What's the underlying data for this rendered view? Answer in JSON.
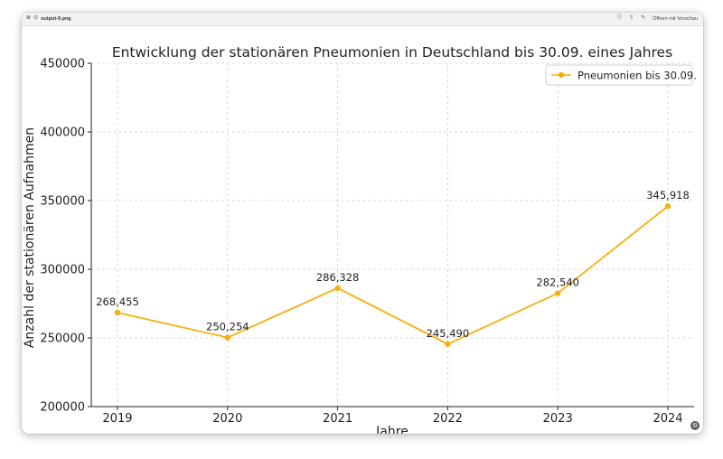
{
  "window": {
    "filename": "output-9.png",
    "open_with": "Öffnen mit Vorschau",
    "icons": [
      "close-icon",
      "zoom-icon",
      "info-icon",
      "share-icon",
      "markup-icon"
    ]
  },
  "chart_data": {
    "type": "line",
    "title": "Entwicklung der stationären Pneumonien in Deutschland bis 30.09. eines Jahres",
    "xlabel": "Jahre",
    "ylabel": "Anzahl der stationären Aufnahmen",
    "categories": [
      "2019",
      "2020",
      "2021",
      "2022",
      "2023",
      "2024"
    ],
    "series": [
      {
        "name": "Pneumonien bis 30.09.",
        "values": [
          268455,
          250254,
          286328,
          245490,
          282540,
          345918
        ],
        "labels": [
          "268,455",
          "250,254",
          "286,328",
          "245,490",
          "282,540",
          "345,918"
        ],
        "color": "#f5b00d"
      }
    ],
    "ylim": [
      200000,
      450000
    ],
    "yticks": [
      200000,
      250000,
      300000,
      350000,
      400000,
      450000
    ],
    "ytick_labels": [
      "200000",
      "250000",
      "300000",
      "350000",
      "400000",
      "450000"
    ],
    "grid": true,
    "legend": "top-right"
  }
}
